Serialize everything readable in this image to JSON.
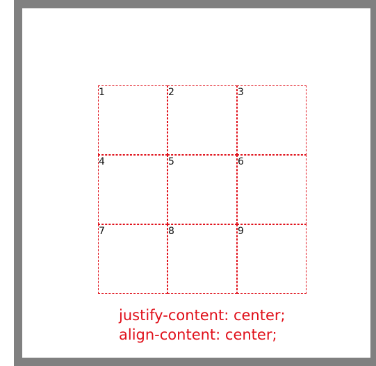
{
  "grid": {
    "cells": [
      "1",
      "2",
      "3",
      "4",
      "5",
      "6",
      "7",
      "8",
      "9"
    ]
  },
  "caption": {
    "line1": "justify-content: center;",
    "line2": "align-content: center;"
  },
  "colors": {
    "frame": "#808080",
    "accent": "#e0101a",
    "text": "#111111"
  }
}
